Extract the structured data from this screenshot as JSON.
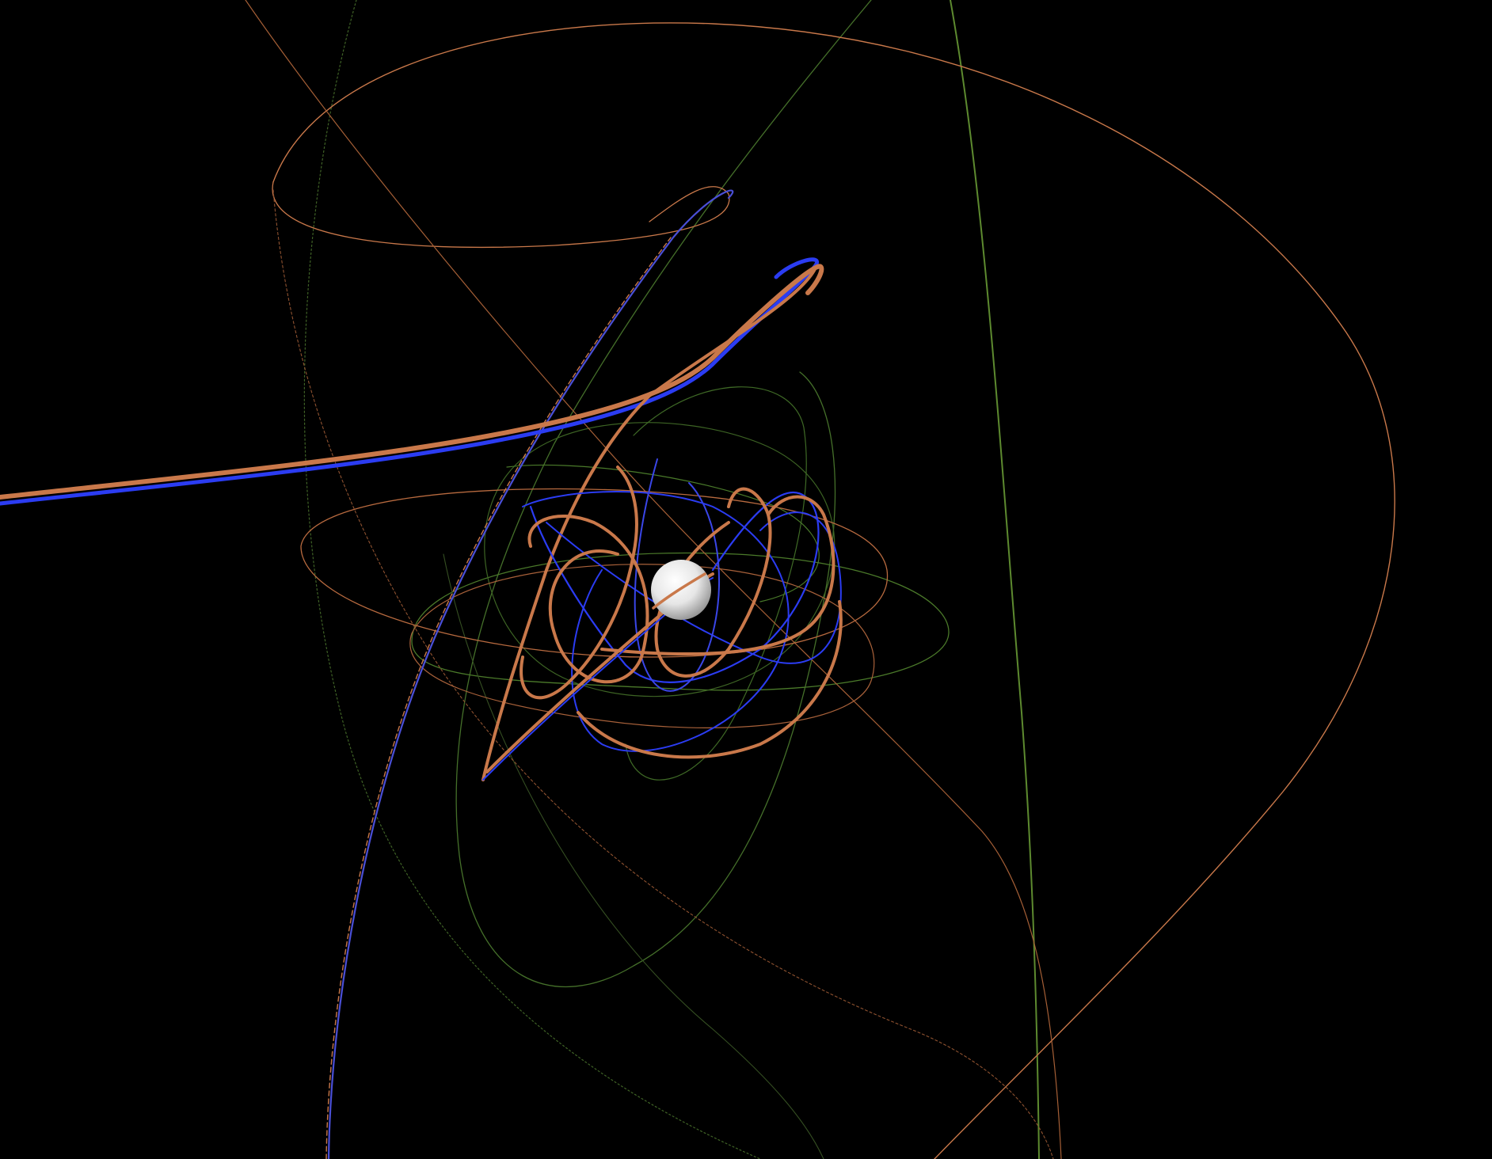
{
  "scene": {
    "background_color": "#000000",
    "central_body": {
      "name": "planet",
      "color": "#f2f2f2",
      "shading_color": "#9a9a9a"
    },
    "trajectory_colors": {
      "orange": "#c9784a",
      "blue": "#2b3cf2",
      "green": "#4f7a2e",
      "green_bright": "#6f9a3a"
    }
  }
}
